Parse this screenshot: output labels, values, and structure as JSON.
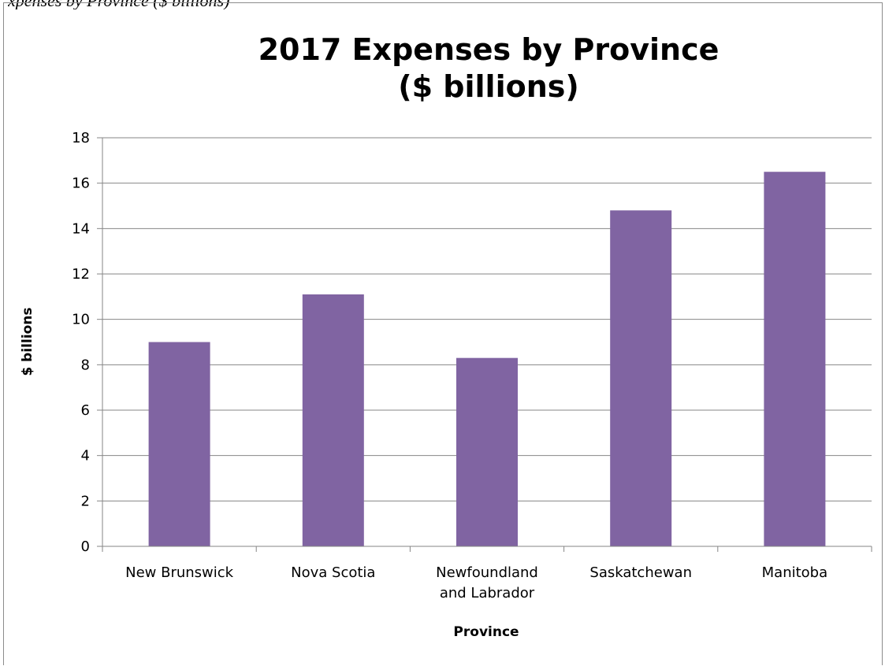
{
  "caption": "xpenses by Province ($ billions)",
  "chart_data": {
    "type": "bar",
    "title": [
      "2017 Expenses by Province",
      "($ billions)"
    ],
    "xlabel": "Province",
    "ylabel": "$ billions",
    "categories": [
      [
        "New Brunswick"
      ],
      [
        "Nova Scotia"
      ],
      [
        "Newfoundland",
        "and Labrador"
      ],
      [
        "Saskatchewan"
      ],
      [
        "Manitoba"
      ]
    ],
    "values": [
      9.0,
      11.1,
      8.3,
      14.8,
      16.5
    ],
    "ylim": [
      0,
      18
    ],
    "yticks": [
      0,
      2,
      4,
      6,
      8,
      10,
      12,
      14,
      16,
      18
    ],
    "grid": true,
    "bar_color": "#8064a2",
    "gridline_color": "#868686"
  }
}
